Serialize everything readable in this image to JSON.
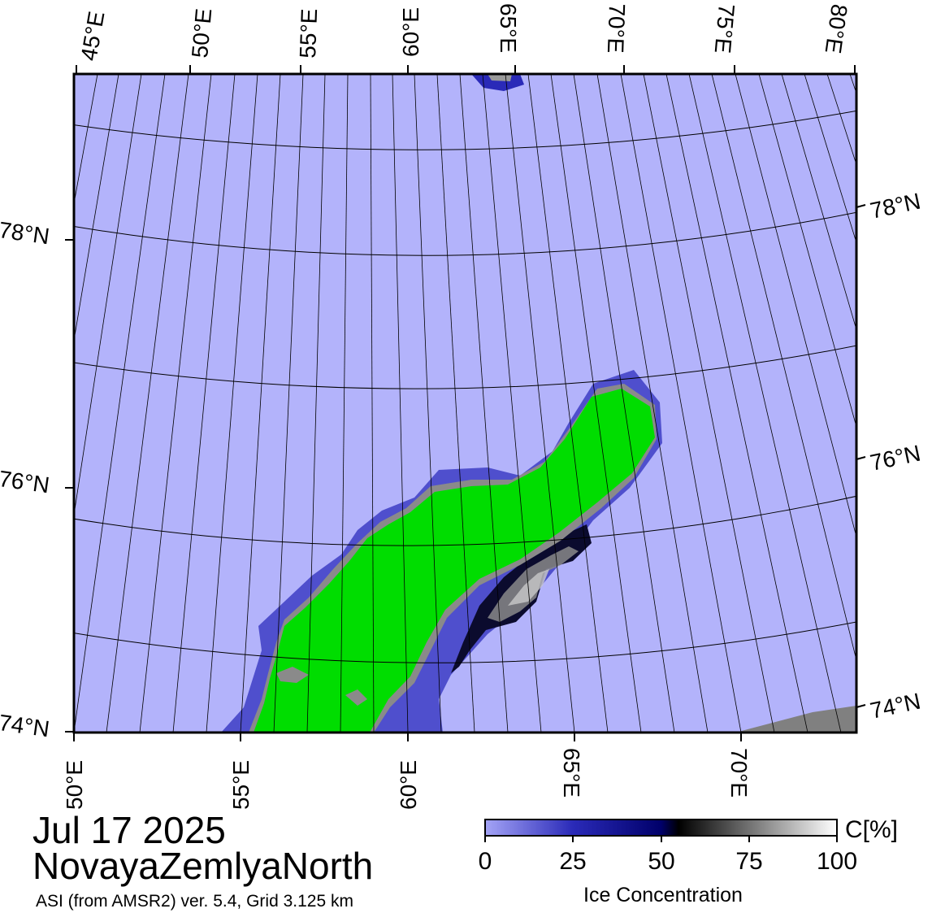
{
  "map": {
    "date": "Jul 17 2025",
    "region": "NovayaZemlyaNorth",
    "info": "ASI (from AMSR2) ver. 5.4,  Grid 3.125 km",
    "top_lon_labels": [
      "45°E",
      "50°E",
      "55°E",
      "60°E",
      "65°E",
      "70°E",
      "75°E",
      "80°E"
    ],
    "bottom_lon_labels": [
      "50°E",
      "55°E",
      "60°E",
      "65°E",
      "70°E"
    ],
    "left_lat_labels": [
      "78°N",
      "76°N",
      "74°N"
    ],
    "right_lat_labels": [
      "78°N",
      "76°N",
      "74°N"
    ],
    "colors": {
      "open_water": "#b3b3fb",
      "land": "#00dd00",
      "coast": "#8a8a8a",
      "ice_low": "#3333bb",
      "ice_mid": "#000033",
      "graticule": "#000000"
    }
  },
  "colorbar": {
    "unit": "C[%]",
    "title": "Ice Concentration",
    "ticks": [
      "0",
      "25",
      "50",
      "75",
      "100"
    ],
    "stops": [
      "#a4a4f6",
      "#2a2ab8",
      "#00006a",
      "#000000",
      "#ffffff"
    ]
  }
}
